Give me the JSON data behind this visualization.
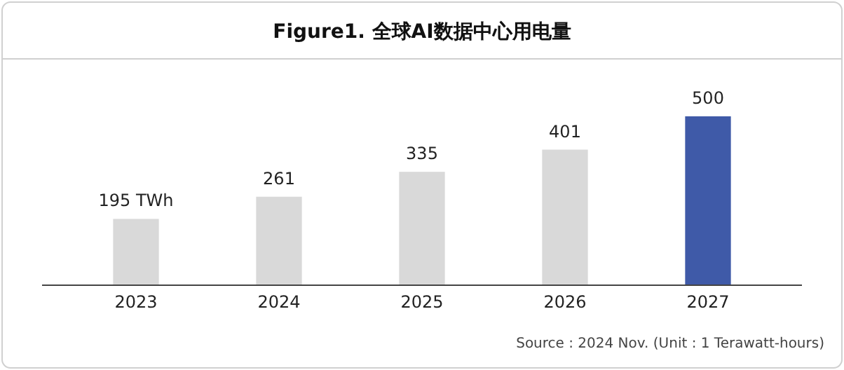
{
  "chart_data": {
    "type": "bar",
    "title": "Figure1. 全球AI数据中心用电量",
    "categories": [
      "2023",
      "2024",
      "2025",
      "2026",
      "2027"
    ],
    "values": [
      195,
      261,
      335,
      401,
      500
    ],
    "colors": [
      "#d9d9d9",
      "#d9d9d9",
      "#d9d9d9",
      "#d9d9d9",
      "#3f5aa8"
    ],
    "value_labels": [
      "195 TWh",
      "261",
      "335",
      "401",
      "500"
    ],
    "ylim": [
      0,
      500
    ],
    "tick_labels": "x",
    "annotations": [
      "Source : 2024 Nov. (Unit : 1 Terawatt-hours)"
    ]
  }
}
